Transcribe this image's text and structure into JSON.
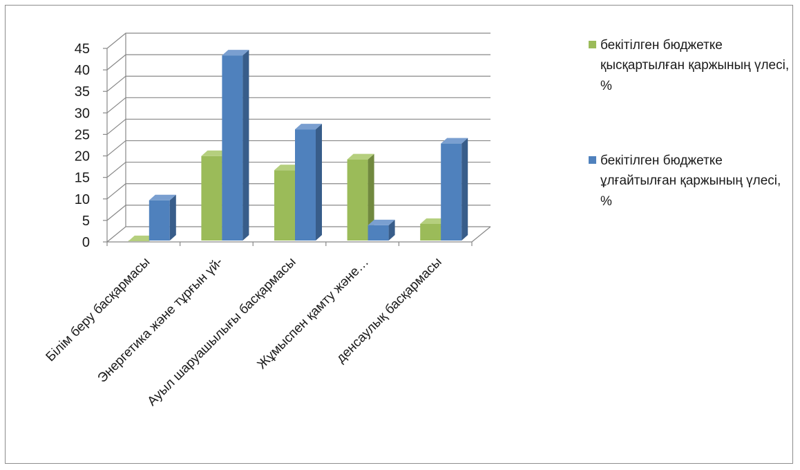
{
  "chart_data": {
    "type": "bar",
    "categories": [
      "Білім беру басқармасы",
      "Энергетика және тұрғын үй-",
      "Ауыл шаруашылығы басқармасы",
      "Жұмыспен қамту және…",
      "денсаулық басқармасы"
    ],
    "series": [
      {
        "name": "бекітілген бюджетке қысқартылған қаржының үлесі, %",
        "values": [
          0.5,
          20.3,
          17.0,
          19.5,
          4.5
        ]
      },
      {
        "name": "бекітілген бюджетке ұлғайтылған қаржының үлесі, %",
        "values": [
          10.0,
          43.7,
          26.5,
          4.2,
          23.2
        ]
      }
    ],
    "ylim": [
      0,
      45
    ],
    "yticks": [
      "0",
      "5",
      "10",
      "15",
      "20",
      "25",
      "30",
      "35",
      "40",
      "45"
    ],
    "grid": true,
    "legend_position": "right",
    "colors": {
      "series0_front": "#9bbb59",
      "series0_side": "#71893f",
      "series0_top": "#b5cf7e",
      "series1_front": "#4f81bd",
      "series1_side": "#385d8a",
      "series1_top": "#7a9fd0",
      "grid": "#878787"
    }
  }
}
